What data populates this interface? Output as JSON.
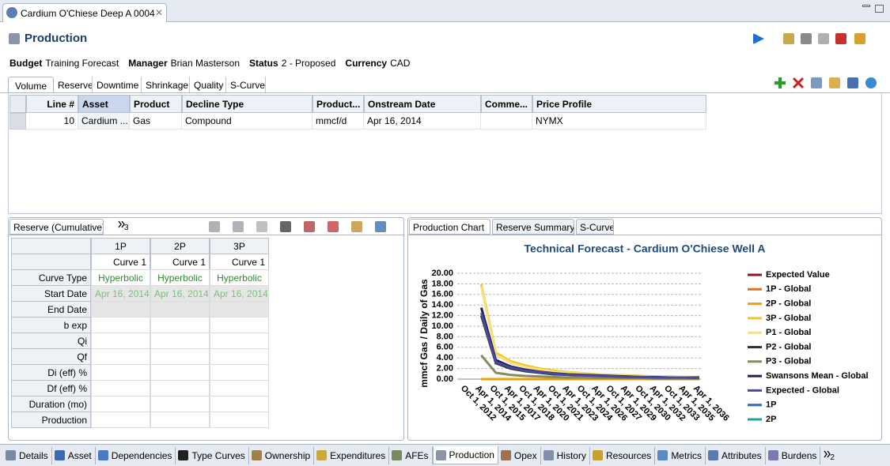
{
  "editor_tab": "Cardium O'Chiese Deep A 0004",
  "header": {
    "title": "Production"
  },
  "summary": [
    {
      "label": "Budget",
      "value": "Training Forecast"
    },
    {
      "label": "Manager",
      "value": "Brian Masterson"
    },
    {
      "label": "Status",
      "value": "2 - Proposed"
    },
    {
      "label": "Currency",
      "value": "CAD"
    }
  ],
  "volume_tabs": [
    "Volume",
    "Reserve",
    "Downtime",
    "Shrinkage",
    "Quality",
    "S-Curve"
  ],
  "volume_table": {
    "columns": [
      "Line #",
      "Asset",
      "Product",
      "Decline Type",
      "Product...",
      "Onstream Date",
      "Comme...",
      "Price Profile"
    ],
    "rows": [
      [
        "10",
        "Cardium ...",
        "Gas",
        "Compound",
        "mmcf/d",
        "Apr 16, 2014",
        null,
        "NYMX"
      ]
    ]
  },
  "reserve_panel": {
    "tab": "Reserve (Cumulative)",
    "overflow_count": "3",
    "columns": [
      "1P",
      "2P",
      "3P"
    ],
    "curves": [
      "Curve 1",
      "Curve 1",
      "Curve 1"
    ],
    "rows": [
      {
        "label": "Curve Type",
        "cells": [
          "Hyperbolic",
          "Hyperbolic",
          "Hyperbolic"
        ]
      },
      {
        "label": "Start Date",
        "cells": [
          "Apr 16, 2014",
          "Apr 16, 2014",
          "Apr 16, 2014"
        ]
      },
      {
        "label": "End Date"
      },
      {
        "label": "b exp"
      },
      {
        "label": "Qi"
      },
      {
        "label": "Qf"
      },
      {
        "label": "Di (eff) %"
      },
      {
        "label": "Df (eff) %"
      },
      {
        "label": "Duration (mo)"
      },
      {
        "label": "Production"
      }
    ]
  },
  "chart_tabs": [
    "Production Chart",
    "Reserve Summary",
    "S-Curve"
  ],
  "chart_data": {
    "type": "line",
    "title": "Technical Forecast - Cardium O'Chiese Well A",
    "y_label": "mmcf Gas / Daily of Gas",
    "categories": [
      "Oct 1, 2012",
      "Apr 1, 2014",
      "Oct 1, 2015",
      "Apr 1, 2017",
      "Oct 1, 2018",
      "Apr 1, 2020",
      "Oct 1, 2021",
      "Apr 1, 2023",
      "Oct 1, 2024",
      "Apr 1, 2026",
      "Oct 1, 2027",
      "Apr 1, 2029",
      "Oct 1, 2030",
      "Apr 1, 2032",
      "Oct 1, 2033",
      "Apr 1, 2035",
      "Apr 1, 2036"
    ],
    "series": [
      {
        "name": "Expected Value",
        "color": "#8b1a1a",
        "values": [
          null,
          null,
          null,
          null,
          null,
          null,
          null,
          null,
          null,
          null,
          null,
          null,
          null,
          null,
          null,
          null,
          null
        ]
      },
      {
        "name": "1P - Global",
        "color": "#e0701e",
        "values": [
          null,
          0,
          0,
          0,
          0,
          0,
          0,
          0,
          0,
          0,
          0,
          0,
          0,
          0,
          0,
          0,
          0
        ]
      },
      {
        "name": "2P - Global",
        "color": "#f0a000",
        "values": [
          null,
          0,
          0,
          0,
          0,
          0,
          0,
          0,
          0,
          0,
          0,
          0,
          0,
          0,
          0,
          0,
          0
        ]
      },
      {
        "name": "3P - Global",
        "color": "#f5c518",
        "values": [
          null,
          17.9,
          5.0,
          3.4,
          2.6,
          2.0,
          1.6,
          1.3,
          1.1,
          0.9,
          0.8,
          0.7,
          0.6,
          0.5,
          0.5,
          0.4,
          0.4
        ]
      },
      {
        "name": "P1 - Global",
        "color": "#f5e08a",
        "values": [
          null,
          17.5,
          4.6,
          3.1,
          2.3,
          1.8,
          1.4,
          1.2,
          1.0,
          0.8,
          0.7,
          0.6,
          0.5,
          0.5,
          0.4,
          0.4,
          0.3
        ]
      },
      {
        "name": "P2 - Global",
        "color": "#333333",
        "values": [
          null,
          12.0,
          3.0,
          2.0,
          1.5,
          1.2,
          0.9,
          0.8,
          0.7,
          0.6,
          0.5,
          0.4,
          0.4,
          0.3,
          0.3,
          0.2,
          0.2
        ]
      },
      {
        "name": "P3 - Global",
        "color": "#8a8a60",
        "values": [
          null,
          4.5,
          1.2,
          0.8,
          0.6,
          0.5,
          0.4,
          0.3,
          0.3,
          0.2,
          0.2,
          0.2,
          0.2,
          0.1,
          0.1,
          0.1,
          0.1
        ]
      },
      {
        "name": "Swansons Mean - Global",
        "color": "#202050",
        "values": [
          null,
          13.5,
          3.6,
          2.4,
          1.8,
          1.4,
          1.1,
          0.9,
          0.8,
          0.7,
          0.6,
          0.5,
          0.4,
          0.4,
          0.3,
          0.3,
          0.3
        ]
      },
      {
        "name": "Expected - Global",
        "color": "#4a4aa0",
        "values": [
          null,
          12.5,
          3.2,
          2.2,
          1.6,
          1.3,
          1.0,
          0.8,
          0.7,
          0.6,
          0.5,
          0.4,
          0.4,
          0.3,
          0.3,
          0.3,
          0.2
        ]
      },
      {
        "name": "1P",
        "color": "#2a6ebb",
        "values": [
          null,
          null,
          null,
          null,
          null,
          null,
          null,
          null,
          null,
          null,
          null,
          null,
          null,
          null,
          null,
          null,
          null
        ]
      },
      {
        "name": "2P",
        "color": "#20a0a0",
        "values": [
          null,
          null,
          null,
          null,
          null,
          null,
          null,
          null,
          null,
          null,
          null,
          null,
          null,
          null,
          null,
          null,
          null
        ]
      }
    ],
    "ylim": [
      0,
      20
    ],
    "yticks": [
      {
        "value": 0,
        "label": "0.00"
      },
      {
        "value": 2,
        "label": "2.00"
      },
      {
        "value": 4,
        "label": "4.00"
      },
      {
        "value": 6,
        "label": "6.00"
      },
      {
        "value": 8,
        "label": "8.00"
      },
      {
        "value": 10,
        "label": "10.00"
      },
      {
        "value": 12,
        "label": "12.00"
      },
      {
        "value": 14,
        "label": "14.00"
      },
      {
        "value": 16,
        "label": "16.00"
      },
      {
        "value": 18,
        "label": "18.00"
      },
      {
        "value": 20,
        "label": "20.00"
      }
    ],
    "grid": true,
    "legend": "right"
  },
  "bottom_tabs": [
    "Details",
    "Asset",
    "Dependencies",
    "Type Curves",
    "Ownership",
    "Expenditures",
    "AFEs",
    "Production",
    "Opex",
    "History",
    "Resources",
    "Metrics",
    "Attributes",
    "Burdens"
  ],
  "bottom_overflow_count": "2"
}
